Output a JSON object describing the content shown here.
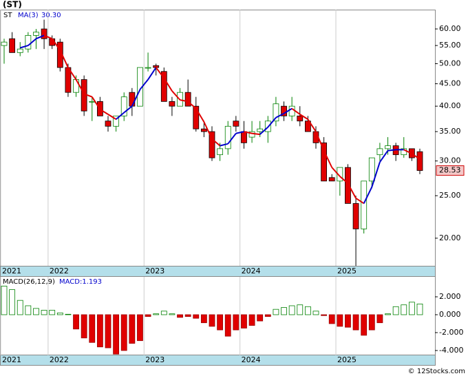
{
  "header": "(ST)",
  "footer": "© 12Stocks.com",
  "chart_data": [
    {
      "type": "candlestick",
      "symbol": "ST",
      "log": true,
      "categories": [
        "2021",
        null,
        null,
        null,
        null,
        null,
        "2022",
        null,
        null,
        null,
        null,
        null,
        null,
        null,
        null,
        null,
        null,
        null,
        "2023",
        null,
        null,
        null,
        null,
        null,
        null,
        null,
        null,
        null,
        null,
        null,
        "2024",
        null,
        null,
        null,
        null,
        null,
        null,
        null,
        null,
        null,
        null,
        null,
        "2025",
        null,
        null,
        null,
        null,
        null,
        null,
        null,
        null,
        null,
        null
      ],
      "open": [
        55,
        57,
        53,
        54,
        58,
        60,
        57,
        56,
        49,
        43,
        46,
        41,
        41,
        37,
        36,
        38,
        43,
        40,
        49,
        49.5,
        48,
        41,
        40,
        43,
        40,
        35.5,
        35,
        31,
        32,
        37,
        35,
        34,
        35,
        35,
        37,
        40,
        38,
        38,
        37,
        35,
        33,
        27.5,
        27,
        29,
        24,
        21,
        27,
        31,
        32,
        32.5,
        31,
        32,
        31.5
      ],
      "high": [
        57,
        59,
        56,
        59,
        60,
        63,
        58,
        57,
        50,
        47,
        47,
        42,
        42,
        38,
        38,
        43,
        44,
        49,
        53,
        50,
        49,
        42,
        44,
        46,
        42,
        37,
        36,
        33,
        37,
        38,
        37,
        37,
        37,
        38,
        42,
        41,
        42,
        40,
        38,
        36,
        34,
        28,
        29,
        29.5,
        25,
        27,
        30.5,
        33,
        34,
        33,
        34,
        32,
        32
      ],
      "low": [
        50,
        53,
        52,
        53,
        54,
        54,
        54,
        48,
        42,
        42,
        38,
        37,
        38,
        35,
        35,
        37,
        38,
        40,
        48,
        47,
        41,
        38,
        40,
        40,
        35,
        34,
        30,
        30,
        31,
        35,
        32,
        33,
        34,
        33,
        36,
        37,
        37,
        36,
        35,
        32,
        27,
        27,
        25,
        24,
        17.3,
        20.5,
        26,
        30,
        31,
        30,
        30.5,
        30,
        28
      ],
      "close": [
        56,
        53,
        54,
        58,
        59,
        57,
        55,
        49,
        43,
        46,
        39,
        41,
        38,
        36,
        38,
        42,
        40,
        49,
        49,
        49,
        41,
        40,
        43,
        40,
        35.5,
        35,
        30.5,
        32,
        36,
        36,
        33,
        35,
        35.5,
        37,
        40.5,
        38,
        40,
        37,
        35,
        33,
        27,
        27,
        29,
        24,
        21,
        27,
        30.5,
        32,
        32.5,
        31,
        32,
        30.5,
        28.53
      ],
      "last_label": "28.53",
      "up_color": "#008000",
      "down_color": "#e00000",
      "ma": {
        "name": "MA(3)",
        "value_label": "30.30",
        "up_color": "#0000cc",
        "down_color": "#e00000",
        "values": [
          null,
          null,
          54.33,
          55,
          57,
          58,
          57,
          53.67,
          49,
          46,
          42.67,
          42,
          39.33,
          38.33,
          37.33,
          38.67,
          40,
          43.67,
          46,
          49,
          46.33,
          43.33,
          41.33,
          41,
          39.5,
          36.83,
          33.67,
          32.5,
          32.83,
          34.67,
          35,
          34.67,
          34.5,
          35.83,
          37.67,
          38.5,
          39.5,
          38.33,
          37.33,
          35,
          31.67,
          29,
          27.67,
          26.67,
          24.67,
          24,
          26.17,
          29.83,
          31.67,
          31.83,
          31.83,
          31.17,
          30.3
        ]
      },
      "ylim": [
        17.3,
        66.4
      ],
      "yticks": [
        {
          "value": 20,
          "label": "20.00"
        },
        {
          "value": 25,
          "label": "25.00"
        },
        {
          "value": 30,
          "label": "30.00"
        },
        {
          "value": 35,
          "label": "35.00"
        },
        {
          "value": 40,
          "label": "40.00"
        },
        {
          "value": 45,
          "label": "45.00"
        },
        {
          "value": 50,
          "label": "50.00"
        },
        {
          "value": 55,
          "label": "55.00"
        },
        {
          "value": 60,
          "label": "60.00"
        }
      ]
    },
    {
      "type": "bar",
      "label": "MACD(26,12,9)",
      "macd_label": "MACD:1.193",
      "up_color": "#008000",
      "down_color": "#e00000",
      "values": [
        3.2,
        2.8,
        1.6,
        1.0,
        0.7,
        0.5,
        0.5,
        0.2,
        0.05,
        -1.6,
        -2.6,
        -3.1,
        -3.6,
        -3.7,
        -4.4,
        -4.0,
        -3.2,
        -2.9,
        -0.2,
        0.1,
        0.4,
        0.1,
        -0.3,
        -0.2,
        -0.4,
        -0.9,
        -1.3,
        -1.7,
        -2.4,
        -1.7,
        -1.5,
        -1.2,
        -0.7,
        -0.2,
        0.6,
        0.8,
        1.0,
        1.1,
        0.9,
        0.4,
        -0.1,
        -1.0,
        -1.3,
        -1.4,
        -1.7,
        -2.3,
        -1.7,
        -0.9,
        0.1,
        0.9,
        1.1,
        1.4,
        1.2
      ],
      "ylim": [
        -4.54,
        4.23
      ],
      "yticks": [
        {
          "value": 2,
          "label": "2.000"
        },
        {
          "value": 0,
          "label": "0.000"
        },
        {
          "value": -2,
          "label": "-2.000"
        },
        {
          "value": -4,
          "label": "-4.000"
        }
      ]
    }
  ]
}
